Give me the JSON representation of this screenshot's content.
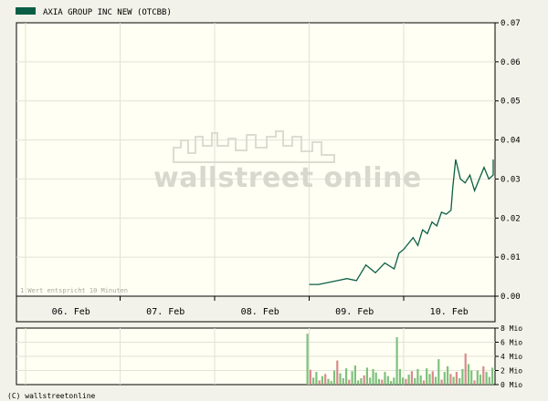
{
  "legend": {
    "label": "AXIA GROUP INC NEW (OTCBB)",
    "color": "#0b5e46"
  },
  "watermark": "wallstreet online",
  "note": "1 Wert entspricht 10 Minuten",
  "footer": "(C) wallstreetonline",
  "colors": {
    "background": "#f2f2ea",
    "plot": "#fffff3",
    "grid": "#e2e2d8",
    "price_line": "#0b5e46",
    "volume_up": "#7ec07e",
    "volume_down": "#d98a8a"
  },
  "chart_data": [
    {
      "type": "line",
      "ylim": [
        0,
        0.07
      ],
      "y_ticks": [
        "0.00",
        "0.01",
        "0.02",
        "0.03",
        "0.04",
        "0.05",
        "0.06",
        "0.07"
      ],
      "y_tick_values": [
        0,
        0.01,
        0.02,
        0.03,
        0.04,
        0.05,
        0.06,
        0.07
      ],
      "x_ticks": [
        "06. Feb",
        "07. Feb",
        "08. Feb",
        "09. Feb",
        "10. Feb"
      ],
      "grid": true,
      "series": [
        {
          "name": "AXIA GROUP INC NEW (OTCBB)",
          "x": [
            3.0,
            3.1,
            3.2,
            3.3,
            3.4,
            3.5,
            3.6,
            3.7,
            3.8,
            3.9,
            3.95,
            4.0,
            4.05,
            4.1,
            4.15,
            4.2,
            4.25,
            4.3,
            4.35,
            4.4,
            4.45,
            4.5,
            4.52,
            4.55,
            4.6,
            4.65,
            4.7,
            4.75,
            4.8,
            4.85,
            4.9,
            4.95,
            5.0,
            5.05
          ],
          "y": [
            0.003,
            0.003,
            0.0035,
            0.004,
            0.0045,
            0.004,
            0.008,
            0.006,
            0.0085,
            0.007,
            0.011,
            0.012,
            0.0135,
            0.015,
            0.013,
            0.017,
            0.016,
            0.019,
            0.018,
            0.0215,
            0.021,
            0.022,
            0.028,
            0.035,
            0.03,
            0.029,
            0.031,
            0.027,
            0.03,
            0.033,
            0.03,
            0.031,
            0.033,
            0.035
          ]
        }
      ]
    },
    {
      "type": "bar",
      "ylim": [
        0,
        8
      ],
      "y_ticks": [
        "0 Mio",
        "2 Mio",
        "4 Mio",
        "6 Mio",
        "8 Mio"
      ],
      "y_tick_values": [
        0,
        2,
        4,
        6,
        8
      ],
      "series": [
        {
          "name": "volume",
          "values": [
            7.2,
            2.1,
            1.0,
            1.8,
            0.6,
            1.2,
            1.5,
            0.8,
            0.5,
            2.0,
            3.4,
            1.6,
            0.9,
            2.3,
            0.7,
            1.9,
            2.7,
            0.6,
            0.9,
            1.3,
            2.4,
            1.0,
            2.2,
            1.7,
            0.8,
            0.7,
            1.8,
            1.2,
            0.5,
            1.0,
            6.7,
            2.2,
            1.0,
            0.8,
            1.4,
            1.9,
            0.9,
            2.2,
            1.3,
            0.6,
            2.3,
            1.5,
            1.9,
            1.1,
            3.6,
            0.7,
            1.8,
            2.6,
            1.5,
            1.1,
            1.8,
            0.9,
            2.2,
            4.4,
            2.9,
            2.0,
            0.6,
            2.0,
            1.4,
            2.6,
            1.8,
            1.1,
            2.4
          ],
          "up": [
            1,
            0,
            1,
            1,
            0,
            1,
            0,
            1,
            1,
            1,
            0,
            1,
            1,
            1,
            0,
            1,
            1,
            1,
            1,
            0,
            1,
            1,
            1,
            1,
            1,
            0,
            1,
            1,
            1,
            1,
            1,
            1,
            1,
            0,
            1,
            0,
            1,
            1,
            1,
            0,
            1,
            1,
            0,
            1,
            1,
            0,
            1,
            1,
            0,
            1,
            0,
            1,
            1,
            0,
            1,
            1,
            0,
            1,
            1,
            0,
            1,
            1,
            1
          ]
        }
      ]
    }
  ]
}
